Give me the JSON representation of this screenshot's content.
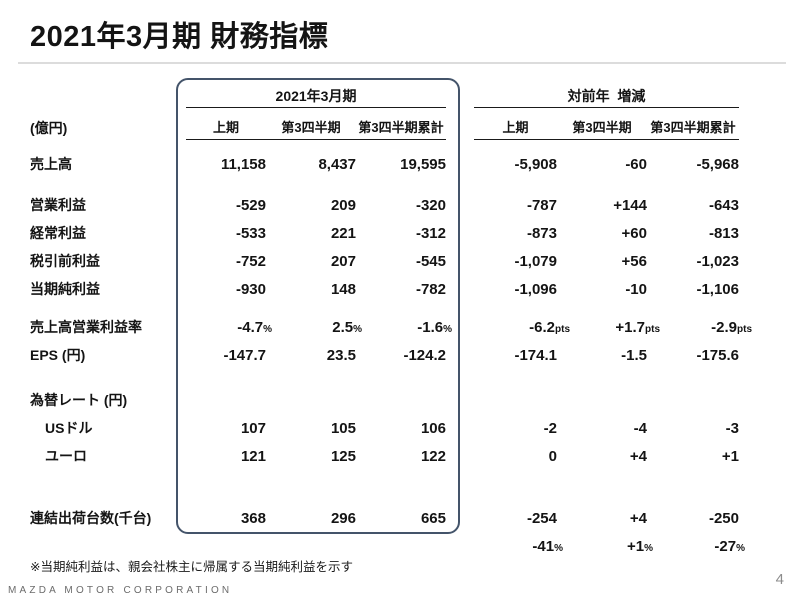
{
  "slide": {
    "title": "2021年3月期 財務指標",
    "note": "※当期純利益は、親会社株主に帰属する当期純利益を示す",
    "footer": "MAZDA MOTOR CORPORATION",
    "page_number": "4",
    "unit_label": "(億円)"
  },
  "colors": {
    "box_border": "#44546A",
    "title_rule": "#DCDCDC",
    "footer_text": "#6B6B6B"
  },
  "table": {
    "group_headers": {
      "actual": "2021年3月期",
      "change": "対前年  増減"
    },
    "col_headers": [
      "上期",
      "第3四半期",
      "第3四半期累計"
    ],
    "rows": {
      "revenue": {
        "label": "売上高",
        "actual": [
          "11,158",
          "8,437",
          "19,595"
        ],
        "change": [
          "-5,908",
          "-60",
          "-5,968"
        ]
      },
      "operating_profit": {
        "label": "営業利益",
        "actual": [
          "-529",
          "209",
          "-320"
        ],
        "change": [
          "-787",
          "+144",
          "-643"
        ]
      },
      "ordinary_profit": {
        "label": "経常利益",
        "actual": [
          "-533",
          "221",
          "-312"
        ],
        "change": [
          "-873",
          "+60",
          "-813"
        ]
      },
      "profit_before_tax": {
        "label": "税引前利益",
        "actual": [
          "-752",
          "207",
          "-545"
        ],
        "change": [
          "-1,079",
          "+56",
          "-1,023"
        ]
      },
      "net_income": {
        "label": "当期純利益",
        "actual": [
          "-930",
          "148",
          "-782"
        ],
        "change": [
          "-1,096",
          "-10",
          "-1,106"
        ]
      },
      "operating_margin": {
        "label": "売上高営業利益率",
        "actual": [
          "-4.7",
          "2.5",
          "-1.6"
        ],
        "actual_unit": "%",
        "change": [
          "-6.2",
          "+1.7",
          "-2.9"
        ],
        "change_unit": "pts"
      },
      "eps": {
        "label": "EPS (円)",
        "actual": [
          "-147.7",
          "23.5",
          "-124.2"
        ],
        "change": [
          "-174.1",
          "-1.5",
          "-175.6"
        ]
      },
      "fx": {
        "label": "為替レート (円)"
      },
      "usd": {
        "label": "USドル",
        "actual": [
          "107",
          "105",
          "106"
        ],
        "change": [
          "-2",
          "-4",
          "-3"
        ]
      },
      "eur": {
        "label": "ユーロ",
        "actual": [
          "121",
          "125",
          "122"
        ],
        "change": [
          "0",
          "+4",
          "+1"
        ]
      },
      "shipments": {
        "label": "連結出荷台数(千台)",
        "actual": [
          "368",
          "296",
          "665"
        ],
        "change": [
          "-254",
          "+4",
          "-250"
        ]
      },
      "shipments_pct": {
        "change": [
          "-41",
          "+1",
          "-27"
        ],
        "change_unit": "%"
      }
    }
  }
}
